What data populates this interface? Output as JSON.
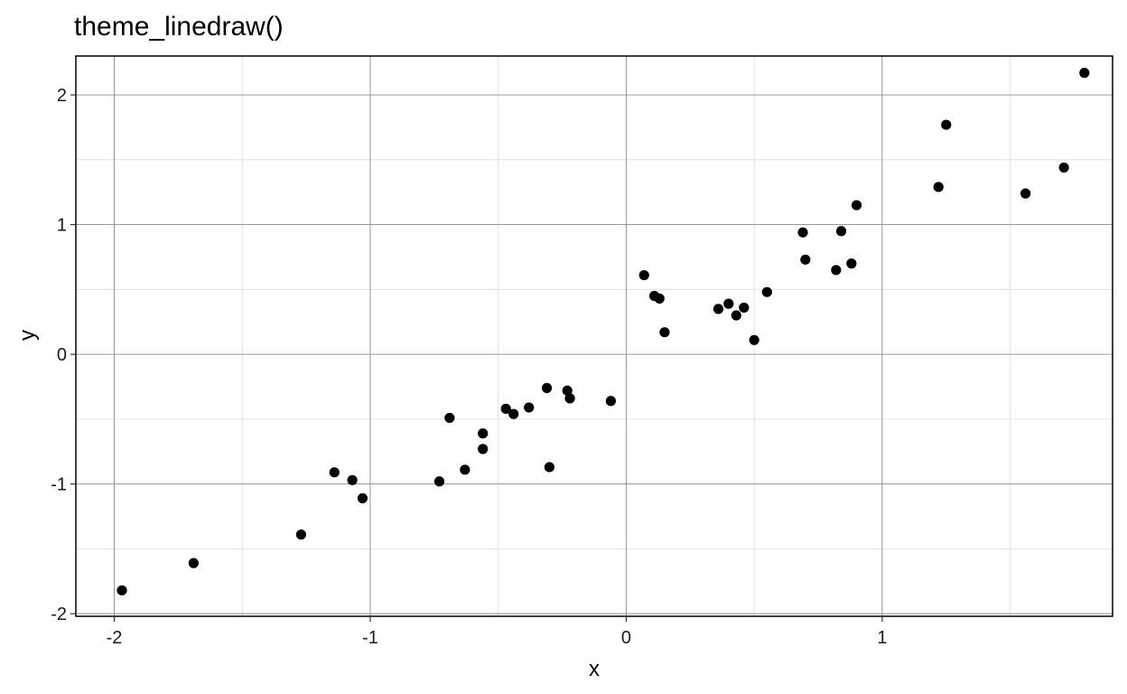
{
  "chart_data": {
    "type": "scatter",
    "title": "theme_linedraw()",
    "xlabel": "x",
    "ylabel": "y",
    "xlim": [
      -2.15,
      1.9
    ],
    "ylim": [
      -2.02,
      2.3
    ],
    "x_ticks": [
      -2,
      -1,
      0,
      1
    ],
    "x_tick_labels": [
      "-2",
      "-1",
      "0",
      "1"
    ],
    "y_ticks": [
      -2,
      -1,
      0,
      1,
      2
    ],
    "y_tick_labels": [
      "-2",
      "-1",
      "0",
      "1",
      "2"
    ],
    "x_minor": [
      -1.5,
      -0.5,
      0.5,
      1.5
    ],
    "y_minor": [
      -1.5,
      -0.5,
      0.5,
      1.5
    ],
    "grid": true,
    "legend": false,
    "colors": {
      "point": "#000000",
      "panel_border": "#000000",
      "grid_major": "#8c8c8c",
      "grid_minor": "#dcdcdc",
      "background": "#ffffff"
    },
    "points": [
      {
        "x": -1.97,
        "y": -1.82
      },
      {
        "x": -1.69,
        "y": -1.61
      },
      {
        "x": -1.27,
        "y": -1.39
      },
      {
        "x": -1.14,
        "y": -0.91
      },
      {
        "x": -1.07,
        "y": -0.97
      },
      {
        "x": -1.03,
        "y": -1.11
      },
      {
        "x": -0.73,
        "y": -0.98
      },
      {
        "x": -0.69,
        "y": -0.49
      },
      {
        "x": -0.63,
        "y": -0.89
      },
      {
        "x": -0.56,
        "y": -0.73
      },
      {
        "x": -0.56,
        "y": -0.61
      },
      {
        "x": -0.47,
        "y": -0.42
      },
      {
        "x": -0.44,
        "y": -0.46
      },
      {
        "x": -0.38,
        "y": -0.41
      },
      {
        "x": -0.31,
        "y": -0.26
      },
      {
        "x": -0.3,
        "y": -0.87
      },
      {
        "x": -0.23,
        "y": -0.28
      },
      {
        "x": -0.22,
        "y": -0.34
      },
      {
        "x": -0.06,
        "y": -0.36
      },
      {
        "x": 0.07,
        "y": 0.61
      },
      {
        "x": 0.11,
        "y": 0.45
      },
      {
        "x": 0.13,
        "y": 0.43
      },
      {
        "x": 0.15,
        "y": 0.17
      },
      {
        "x": 0.36,
        "y": 0.35
      },
      {
        "x": 0.4,
        "y": 0.39
      },
      {
        "x": 0.43,
        "y": 0.3
      },
      {
        "x": 0.46,
        "y": 0.36
      },
      {
        "x": 0.5,
        "y": 0.11
      },
      {
        "x": 0.55,
        "y": 0.48
      },
      {
        "x": 0.69,
        "y": 0.94
      },
      {
        "x": 0.7,
        "y": 0.73
      },
      {
        "x": 0.82,
        "y": 0.65
      },
      {
        "x": 0.84,
        "y": 0.95
      },
      {
        "x": 0.88,
        "y": 0.7
      },
      {
        "x": 0.9,
        "y": 1.15
      },
      {
        "x": 1.22,
        "y": 1.29
      },
      {
        "x": 1.25,
        "y": 1.77
      },
      {
        "x": 1.56,
        "y": 1.24
      },
      {
        "x": 1.71,
        "y": 1.44
      },
      {
        "x": 1.79,
        "y": 2.17
      }
    ]
  }
}
